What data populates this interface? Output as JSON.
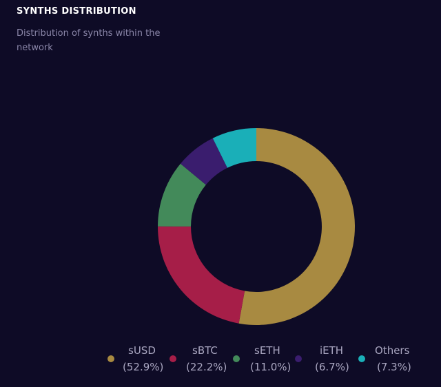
{
  "header": {
    "title": "SYNTHS DISTRIBUTION",
    "subtitle": "Distribution of synths within the network"
  },
  "chart_data": {
    "type": "pie",
    "donut": true,
    "legend_position": "bottom",
    "categories": [
      "sUSD",
      "sBTC",
      "sETH",
      "iETH",
      "Others"
    ],
    "values": [
      52.9,
      22.2,
      11.0,
      6.7,
      7.3
    ],
    "value_labels": [
      "(52.9%)",
      "(22.2%)",
      "(11.0%)",
      "(6.7%)",
      "(7.3%)"
    ],
    "colors": [
      "#a88a41",
      "#a61e48",
      "#438a5a",
      "#3a1d6e",
      "#1aafb8"
    ]
  }
}
